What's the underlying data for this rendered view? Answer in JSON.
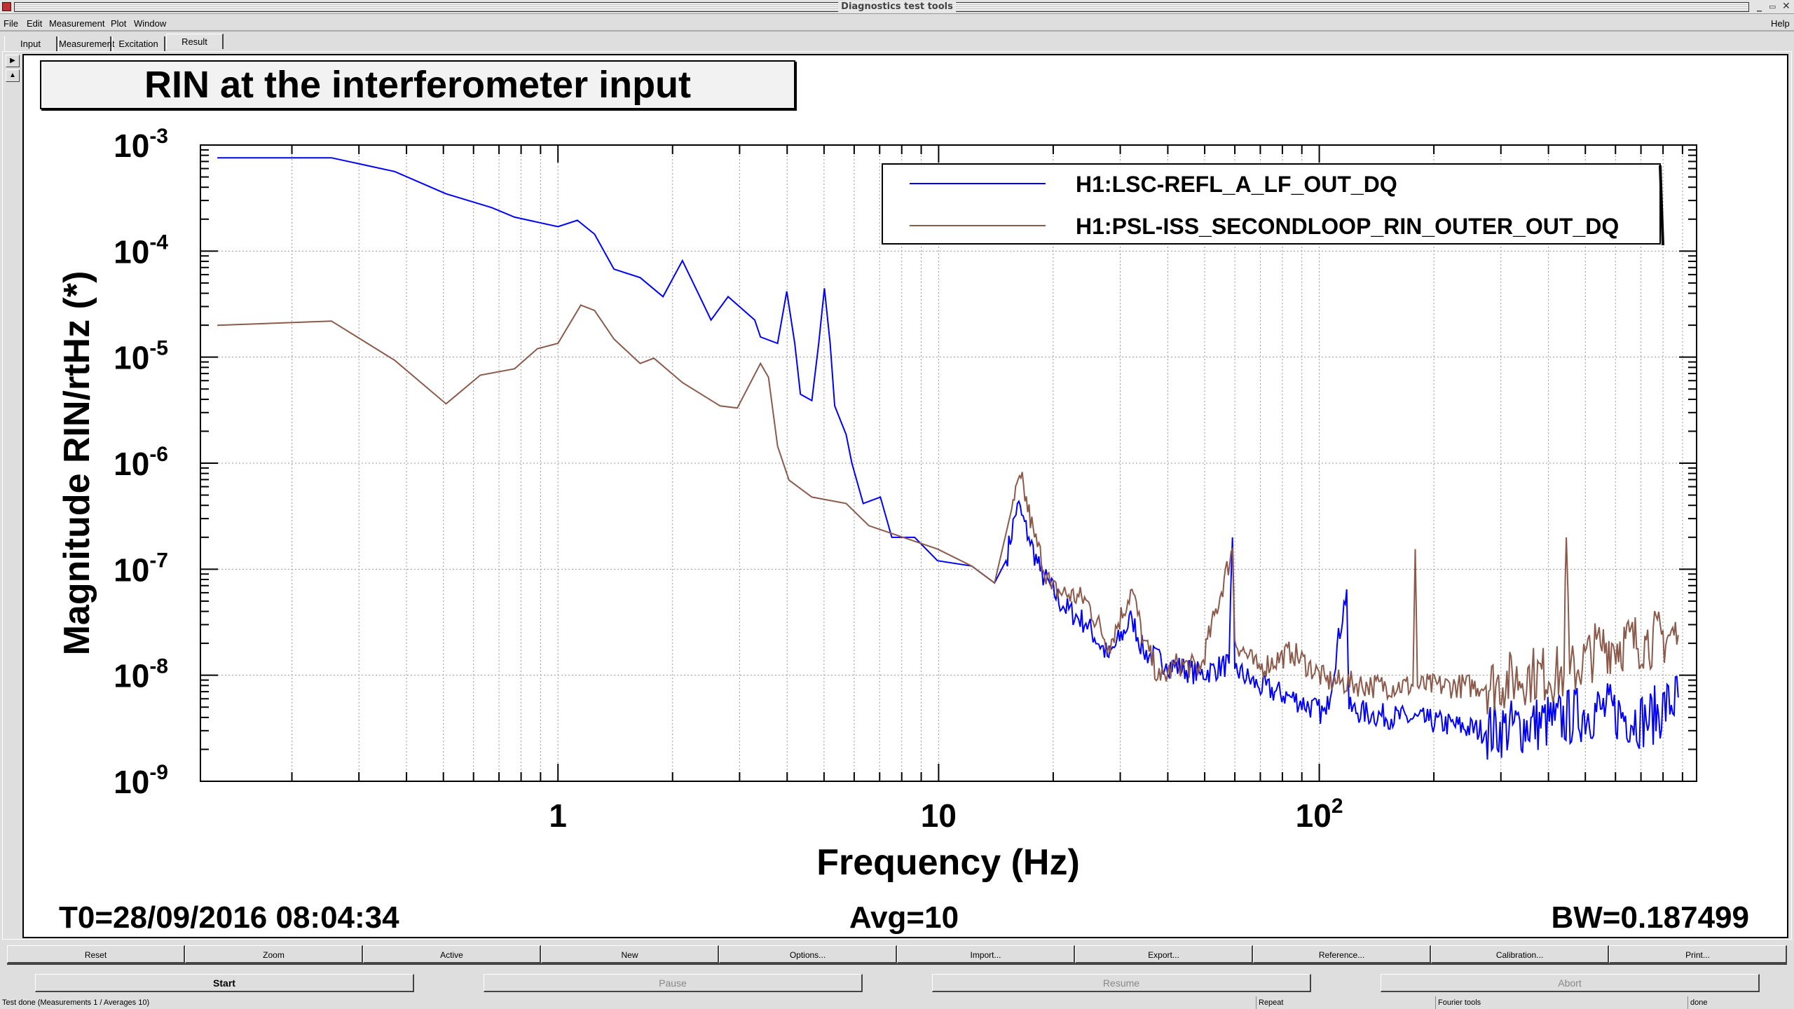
{
  "window": {
    "title": "Diagnostics test tools",
    "controls": [
      "_",
      "▭",
      "✕"
    ]
  },
  "menu": {
    "items": [
      "File",
      "Edit",
      "Measurement",
      "Plot",
      "Window"
    ],
    "help": "Help"
  },
  "tabs": [
    "Input",
    "Measurement",
    "Excitation",
    "Result"
  ],
  "active_tab": "Result",
  "plot_title": "RIN at the interferometer input",
  "footer": {
    "t0": "T0=28/09/2016 08:04:34",
    "avg": "Avg=10",
    "bw": "BW=0.187499"
  },
  "toolbar": [
    "Reset",
    "Zoom",
    "Active",
    "New",
    "Options...",
    "Import...",
    "Export...",
    "Reference...",
    "Calibration...",
    "Print..."
  ],
  "control_buttons": [
    {
      "label": "Start",
      "enabled": true
    },
    {
      "label": "Pause",
      "enabled": false
    },
    {
      "label": "Resume",
      "enabled": false
    },
    {
      "label": "Abort",
      "enabled": false
    }
  ],
  "status": {
    "message": "Test done (Measurements 1 / Averages 10)",
    "mode": "Repeat",
    "tool": "Fourier tools",
    "state": "done"
  },
  "chart_data": {
    "type": "line",
    "xscale": "log",
    "yscale": "log",
    "xlabel": "Frequency (Hz)",
    "ylabel": "Magnitude RIN/rtHz (*)",
    "xlim": [
      0.115,
      980
    ],
    "ylim": [
      1e-09,
      0.001
    ],
    "x_ticks": [
      {
        "value": 1,
        "base": "1",
        "exp": ""
      },
      {
        "value": 10,
        "base": "10",
        "exp": ""
      },
      {
        "value": 100,
        "base": "10",
        "exp": "2"
      }
    ],
    "y_ticks": [
      {
        "value": 0.001,
        "base": "10",
        "exp": "-3"
      },
      {
        "value": 0.0001,
        "base": "10",
        "exp": "-4"
      },
      {
        "value": 1e-05,
        "base": "10",
        "exp": "-5"
      },
      {
        "value": 1e-06,
        "base": "10",
        "exp": "-6"
      },
      {
        "value": 1e-07,
        "base": "10",
        "exp": "-7"
      },
      {
        "value": 1e-08,
        "base": "10",
        "exp": "-8"
      },
      {
        "value": 1e-09,
        "base": "10",
        "exp": "-9"
      }
    ],
    "grid": true,
    "legend_position": "top-right",
    "series": [
      {
        "name": "H1:LSC-REFL_A_LF_OUT_DQ",
        "color": "#0000ff",
        "log10_freq": [
          -0.895,
          -0.595,
          -0.429,
          -0.294,
          -0.174,
          -0.114,
          0,
          0.051,
          0.096,
          0.147,
          0.216,
          0.276,
          0.327,
          0.366,
          0.402,
          0.447,
          0.517,
          0.532,
          0.577,
          0.601,
          0.622,
          0.637,
          0.667,
          0.685,
          0.7,
          0.715,
          0.727,
          0.757,
          0.772,
          0.802,
          0.847,
          0.877,
          0.937,
          0.997,
          1.087,
          1.147,
          1.177,
          1.207,
          1.237,
          1.267,
          1.327,
          1.387,
          1.447,
          1.508,
          1.538,
          1.598,
          1.688,
          1.763,
          1.772,
          1.778,
          1.838,
          1.928,
          2.018,
          2.072,
          2.078,
          2.138,
          2.288,
          2.438,
          2.619,
          2.739,
          2.859,
          2.943
        ],
        "log10_magnitude": [
          -3.12,
          -3.12,
          -3.25,
          -3.46,
          -3.59,
          -3.68,
          -3.77,
          -3.71,
          -3.84,
          -4.17,
          -4.25,
          -4.43,
          -4.09,
          -4.38,
          -4.65,
          -4.43,
          -4.65,
          -4.81,
          -4.87,
          -4.38,
          -4.87,
          -5.35,
          -5.41,
          -4.87,
          -4.35,
          -4.87,
          -5.46,
          -5.73,
          -6.0,
          -6.38,
          -6.32,
          -6.7,
          -6.7,
          -6.92,
          -6.97,
          -7.13,
          -6.92,
          -6.38,
          -6.7,
          -7.02,
          -7.35,
          -7.51,
          -7.83,
          -7.46,
          -7.78,
          -7.89,
          -7.99,
          -7.89,
          -6.7,
          -7.94,
          -8.1,
          -8.21,
          -8.37,
          -7.19,
          -8.32,
          -8.37,
          -8.43,
          -8.53,
          -8.43,
          -8.32,
          -8.43,
          -8.21
        ]
      },
      {
        "name": "H1:PSL-ISS_SECONDLOOP_RIN_OUTER_OUT_DQ",
        "color": "#8b5a4a",
        "log10_freq": [
          -0.895,
          -0.595,
          -0.429,
          -0.294,
          -0.204,
          -0.114,
          -0.054,
          0,
          0.06,
          0.096,
          0.147,
          0.216,
          0.252,
          0.327,
          0.426,
          0.471,
          0.532,
          0.553,
          0.577,
          0.607,
          0.667,
          0.757,
          0.817,
          0.907,
          0.997,
          1.087,
          1.147,
          1.192,
          1.216,
          1.252,
          1.297,
          1.387,
          1.447,
          1.508,
          1.538,
          1.583,
          1.628,
          1.688,
          1.772,
          1.778,
          1.838,
          1.928,
          2.018,
          2.138,
          2.246,
          2.252,
          2.258,
          2.438,
          2.559,
          2.643,
          2.649,
          2.658,
          2.739,
          2.859,
          2.943
        ],
        "log10_magnitude": [
          -4.7,
          -4.66,
          -5.03,
          -5.44,
          -5.17,
          -5.11,
          -4.92,
          -4.87,
          -4.51,
          -4.56,
          -4.83,
          -5.06,
          -5.01,
          -5.24,
          -5.46,
          -5.48,
          -5.06,
          -5.19,
          -5.84,
          -6.16,
          -6.32,
          -6.38,
          -6.59,
          -6.7,
          -6.81,
          -6.97,
          -7.13,
          -6.43,
          -6.14,
          -6.7,
          -7.19,
          -7.29,
          -7.72,
          -7.19,
          -7.67,
          -8.05,
          -7.89,
          -7.94,
          -6.81,
          -7.67,
          -7.94,
          -7.78,
          -8.05,
          -8.1,
          -8.1,
          -6.81,
          -8.1,
          -8.1,
          -7.99,
          -7.99,
          -6.7,
          -7.99,
          -7.72,
          -7.67,
          -7.62
        ]
      }
    ]
  }
}
